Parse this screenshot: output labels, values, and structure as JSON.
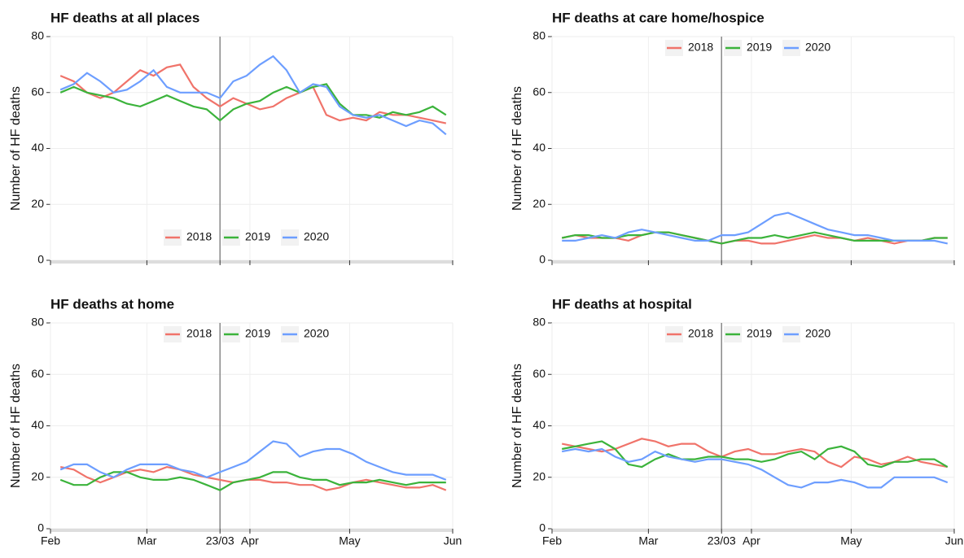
{
  "chart_data": [
    {
      "type": "line",
      "title": "HF deaths at all places",
      "y_label": "Number of HF deaths",
      "x": [
        3,
        7,
        11,
        15,
        19,
        23,
        27,
        31,
        35,
        39,
        43,
        47,
        51,
        55,
        59,
        63,
        67,
        71,
        75,
        79,
        83,
        87,
        91,
        95,
        99,
        103,
        107,
        111,
        115,
        119
      ],
      "series": [
        {
          "name": "2018",
          "color": "#f0736a",
          "values": [
            66,
            64,
            60,
            58,
            60,
            64,
            68,
            66,
            69,
            70,
            62,
            58,
            55,
            58,
            56,
            54,
            55,
            58,
            60,
            62,
            52,
            50,
            51,
            50,
            53,
            52,
            52,
            51,
            50,
            49
          ]
        },
        {
          "name": "2019",
          "color": "#3bb33b",
          "values": [
            60,
            62,
            60,
            59,
            58,
            56,
            55,
            57,
            59,
            57,
            55,
            54,
            50,
            54,
            56,
            57,
            60,
            62,
            60,
            62,
            63,
            56,
            52,
            52,
            51,
            53,
            52,
            53,
            55,
            52
          ]
        },
        {
          "name": "2020",
          "color": "#6d9eff",
          "values": [
            61,
            63,
            67,
            64,
            60,
            61,
            64,
            68,
            62,
            60,
            60,
            60,
            58,
            64,
            66,
            70,
            73,
            68,
            60,
            63,
            62,
            55,
            52,
            51,
            52,
            50,
            48,
            50,
            49,
            45
          ]
        }
      ],
      "xlim": [
        0,
        121
      ],
      "xticks": [
        0,
        29,
        51,
        60,
        90,
        121
      ],
      "reference_x": 51,
      "ylim": [
        0,
        80
      ],
      "yticks": [
        0,
        20,
        40,
        60,
        80
      ],
      "grid": true,
      "legend": "lower center"
    },
    {
      "type": "line",
      "title": "HF deaths at care home/hospice",
      "y_label": "Number of HF deaths",
      "x": [
        3,
        7,
        11,
        15,
        19,
        23,
        27,
        31,
        35,
        39,
        43,
        47,
        51,
        55,
        59,
        63,
        67,
        71,
        75,
        79,
        83,
        87,
        91,
        95,
        99,
        103,
        107,
        111,
        115,
        119
      ],
      "series": [
        {
          "name": "2018",
          "color": "#f0736a",
          "values": [
            8,
            9,
            8,
            8,
            8,
            7,
            9,
            10,
            10,
            9,
            8,
            7,
            6,
            7,
            7,
            6,
            6,
            7,
            8,
            9,
            8,
            8,
            7,
            8,
            7,
            6,
            7,
            7,
            8,
            8
          ]
        },
        {
          "name": "2019",
          "color": "#3bb33b",
          "values": [
            8,
            9,
            9,
            8,
            8,
            9,
            9,
            10,
            10,
            9,
            8,
            7,
            6,
            7,
            8,
            8,
            9,
            8,
            9,
            10,
            9,
            8,
            7,
            7,
            7,
            7,
            7,
            7,
            8,
            8
          ]
        },
        {
          "name": "2020",
          "color": "#6d9eff",
          "values": [
            7,
            7,
            8,
            9,
            8,
            10,
            11,
            10,
            9,
            8,
            7,
            7,
            9,
            9,
            10,
            13,
            16,
            17,
            15,
            13,
            11,
            10,
            9,
            9,
            8,
            7,
            7,
            7,
            7,
            6
          ]
        }
      ],
      "xlim": [
        0,
        121
      ],
      "xticks": [
        0,
        29,
        51,
        60,
        90,
        121
      ],
      "reference_x": 51,
      "ylim": [
        0,
        80
      ],
      "yticks": [
        0,
        20,
        40,
        60,
        80
      ],
      "grid": true,
      "legend": "upper center"
    },
    {
      "type": "line",
      "title": "HF deaths at home",
      "y_label": "Number of HF deaths",
      "x": [
        3,
        7,
        11,
        15,
        19,
        23,
        27,
        31,
        35,
        39,
        43,
        47,
        51,
        55,
        59,
        63,
        67,
        71,
        75,
        79,
        83,
        87,
        91,
        95,
        99,
        103,
        107,
        111,
        115,
        119
      ],
      "series": [
        {
          "name": "2018",
          "color": "#f0736a",
          "values": [
            24,
            23,
            20,
            18,
            20,
            22,
            23,
            22,
            24,
            23,
            21,
            20,
            19,
            18,
            19,
            19,
            18,
            18,
            17,
            17,
            15,
            16,
            18,
            19,
            18,
            17,
            16,
            16,
            17,
            15
          ]
        },
        {
          "name": "2019",
          "color": "#3bb33b",
          "values": [
            19,
            17,
            17,
            20,
            22,
            22,
            20,
            19,
            19,
            20,
            19,
            17,
            15,
            18,
            19,
            20,
            22,
            22,
            20,
            19,
            19,
            17,
            18,
            18,
            19,
            18,
            17,
            18,
            18,
            18
          ]
        },
        {
          "name": "2020",
          "color": "#6d9eff",
          "values": [
            23,
            25,
            25,
            22,
            20,
            23,
            25,
            25,
            25,
            23,
            22,
            20,
            22,
            24,
            26,
            30,
            34,
            33,
            28,
            30,
            31,
            31,
            29,
            26,
            24,
            22,
            21,
            21,
            21,
            19
          ]
        }
      ],
      "xlim": [
        0,
        121
      ],
      "xticks": [
        {
          "value": 0,
          "label": "Feb"
        },
        {
          "value": 29,
          "label": "Mar"
        },
        {
          "value": 51,
          "label": "23/03"
        },
        {
          "value": 60,
          "label": "Apr"
        },
        {
          "value": 90,
          "label": "May"
        },
        {
          "value": 121,
          "label": "Jun"
        }
      ],
      "reference_x": 51,
      "ylim": [
        0,
        80
      ],
      "yticks": [
        0,
        20,
        40,
        60,
        80
      ],
      "grid": true,
      "legend": "upper center"
    },
    {
      "type": "line",
      "title": "HF deaths at hospital",
      "y_label": "Number of HF deaths",
      "x": [
        3,
        7,
        11,
        15,
        19,
        23,
        27,
        31,
        35,
        39,
        43,
        47,
        51,
        55,
        59,
        63,
        67,
        71,
        75,
        79,
        83,
        87,
        91,
        95,
        99,
        103,
        107,
        111,
        115,
        119
      ],
      "series": [
        {
          "name": "2018",
          "color": "#f0736a",
          "values": [
            33,
            32,
            31,
            30,
            31,
            33,
            35,
            34,
            32,
            33,
            33,
            30,
            28,
            30,
            31,
            29,
            29,
            30,
            31,
            30,
            26,
            24,
            28,
            27,
            25,
            26,
            28,
            26,
            25,
            24
          ]
        },
        {
          "name": "2019",
          "color": "#3bb33b",
          "values": [
            31,
            32,
            33,
            34,
            31,
            25,
            24,
            27,
            29,
            27,
            27,
            28,
            28,
            27,
            27,
            26,
            27,
            29,
            30,
            27,
            31,
            32,
            30,
            25,
            24,
            26,
            26,
            27,
            27,
            24
          ]
        },
        {
          "name": "2020",
          "color": "#6d9eff",
          "values": [
            30,
            31,
            30,
            31,
            28,
            26,
            27,
            30,
            28,
            27,
            26,
            27,
            27,
            26,
            25,
            23,
            20,
            17,
            16,
            18,
            18,
            19,
            18,
            16,
            16,
            20,
            20,
            20,
            20,
            18
          ]
        }
      ],
      "xlim": [
        0,
        121
      ],
      "xticks": [
        {
          "value": 0,
          "label": "Feb"
        },
        {
          "value": 29,
          "label": "Mar"
        },
        {
          "value": 51,
          "label": "23/03"
        },
        {
          "value": 60,
          "label": "Apr"
        },
        {
          "value": 90,
          "label": "May"
        },
        {
          "value": 121,
          "label": "Jun"
        }
      ],
      "reference_x": 51,
      "ylim": [
        0,
        80
      ],
      "yticks": [
        0,
        20,
        40,
        60,
        80
      ],
      "grid": true,
      "legend": "upper center"
    }
  ]
}
